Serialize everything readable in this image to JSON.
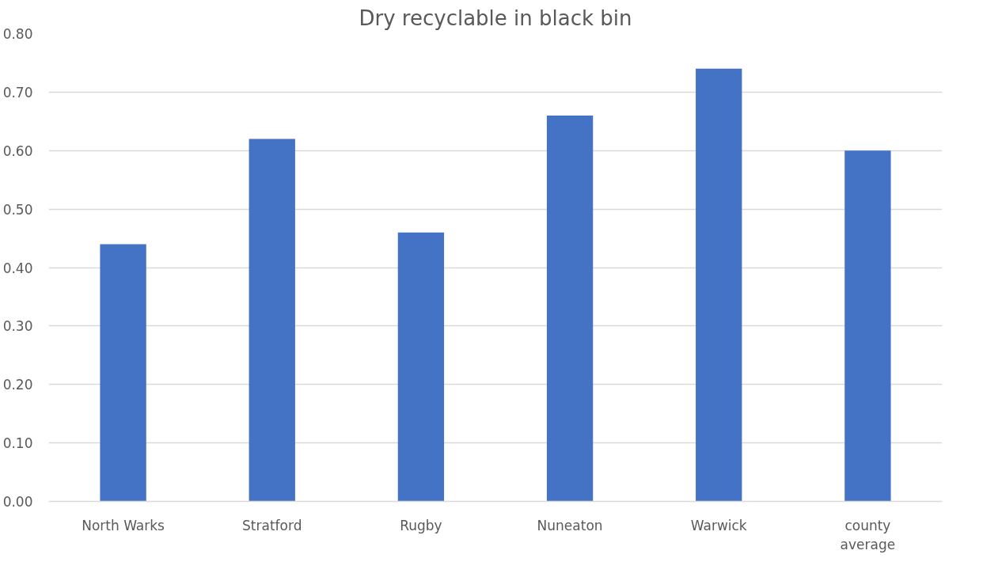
{
  "chart_data": {
    "type": "bar",
    "title": "Dry recyclable in black bin",
    "categories": [
      "North Warks",
      "Stratford",
      "Rugby",
      "Nuneaton",
      "Warwick",
      "county average"
    ],
    "values": [
      0.44,
      0.62,
      0.46,
      0.66,
      0.74,
      0.6
    ],
    "color": "#4472c4",
    "ylim": [
      0,
      0.8
    ],
    "yticks": [
      {
        "value": 0,
        "label": "0.00"
      },
      {
        "value": 0.1,
        "label": "0.10"
      },
      {
        "value": 0.2,
        "label": "0.20"
      },
      {
        "value": 0.3,
        "label": "0.30"
      },
      {
        "value": 0.4,
        "label": "0.40"
      },
      {
        "value": 0.5,
        "label": "0.50"
      },
      {
        "value": 0.6,
        "label": "0.60"
      },
      {
        "value": 0.7,
        "label": "0.70"
      },
      {
        "value": 0.8,
        "label": "0.80"
      }
    ],
    "grid": "y"
  }
}
